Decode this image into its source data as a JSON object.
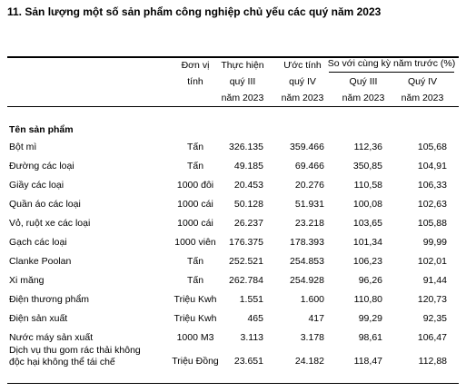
{
  "title": "11. Sản lượng một số sản phẩm công nghiệp chủ yếu các quý năm 2023",
  "table": {
    "header": {
      "unit": [
        "Đơn vị",
        "tính"
      ],
      "actual": [
        "Thực hiện",
        "quý III",
        "năm 2023"
      ],
      "estimate": [
        "Ước tính",
        "quý IV",
        "năm 2023"
      ],
      "compare": "So với cùng kỳ năm trước (%)",
      "compare_q3": [
        "Quý III",
        "năm 2023"
      ],
      "compare_q4": [
        "Quý IV",
        "năm 2023"
      ]
    },
    "section": "Tên sản phẩm",
    "rows": [
      [
        "Bột mì",
        "Tấn",
        "326.135",
        "359.466",
        "112,36",
        "105,68"
      ],
      [
        "Đường các loại",
        "Tấn",
        "49.185",
        "69.466",
        "350,85",
        "104,91"
      ],
      [
        "Giầy các loại",
        "1000 đôi",
        "20.453",
        "20.276",
        "110,58",
        "106,33"
      ],
      [
        "Quần áo các loại",
        "1000 cái",
        "50.128",
        "51.931",
        "100,08",
        "102,63"
      ],
      [
        "Vỏ, ruột xe các loại",
        "1000 cái",
        "26.237",
        "23.218",
        "103,65",
        "105,88"
      ],
      [
        "Gạch các loại",
        "1000 viên",
        "176.375",
        "178.393",
        "101,34",
        "99,99"
      ],
      [
        "Clanke Poolan",
        "Tấn",
        "252.521",
        "254.853",
        "106,23",
        "102,01"
      ],
      [
        "Xi măng",
        "Tấn",
        "262.784",
        "254.928",
        "96,26",
        "91,44"
      ],
      [
        "Điện thương phẩm",
        "Triệu Kwh",
        "1.551",
        "1.600",
        "110,80",
        "120,73"
      ],
      [
        "Điện sản xuất",
        "Triệu Kwh",
        "465",
        "417",
        "99,29",
        "92,35"
      ],
      [
        "Nước máy sản xuất",
        "1000 M3",
        "3.113",
        "3.178",
        "98,61",
        "106,47"
      ],
      [
        "Dịch vụ thu gom rác thải không độc hại không thể tái chế",
        "Triệu Đồng",
        "23.651",
        "24.182",
        "118,47",
        "112,88"
      ]
    ]
  }
}
